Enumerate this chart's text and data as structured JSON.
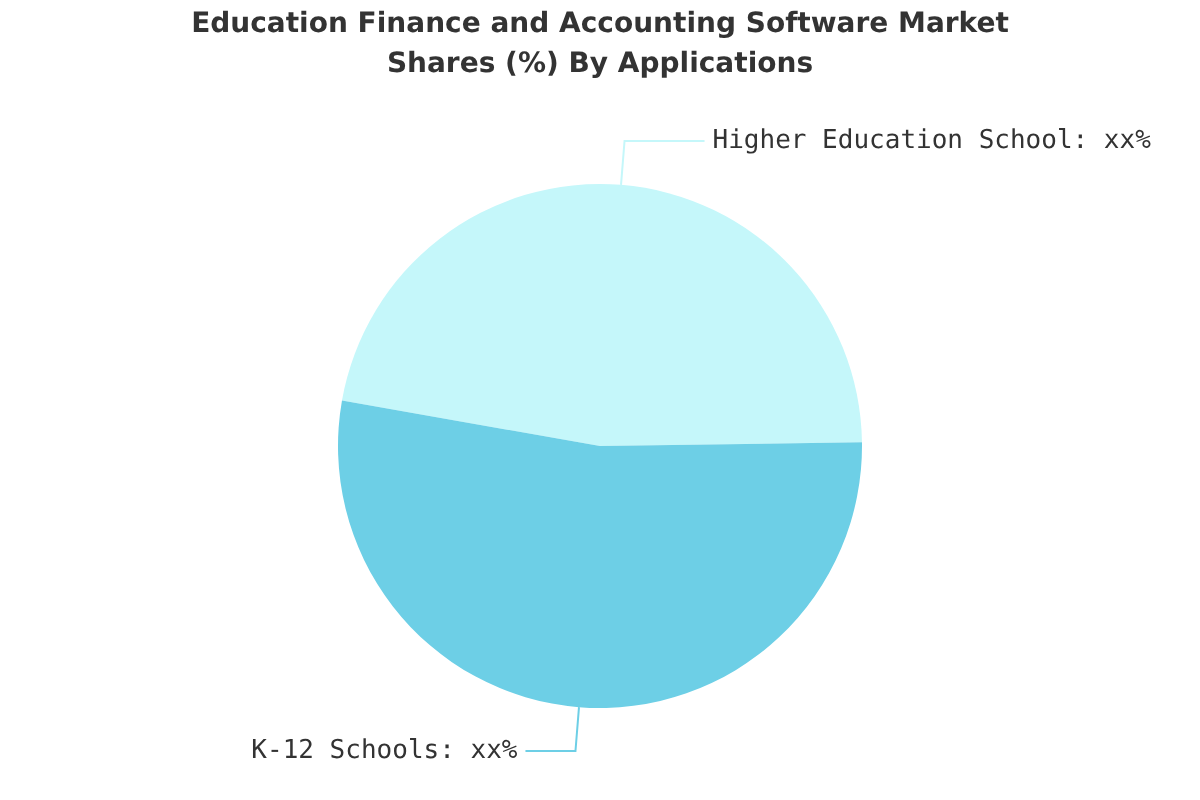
{
  "chart_data": {
    "type": "pie",
    "title": "Education Finance and Accounting Software Market Shares (%) By Applications",
    "categories": [
      "Higher Education School",
      "K-12 Schools"
    ],
    "values": [
      47,
      53
    ],
    "colors": [
      "#c5f7fa",
      "#6dcfe6"
    ],
    "value_labels": [
      "xx%",
      "xx%"
    ],
    "legend": false
  }
}
